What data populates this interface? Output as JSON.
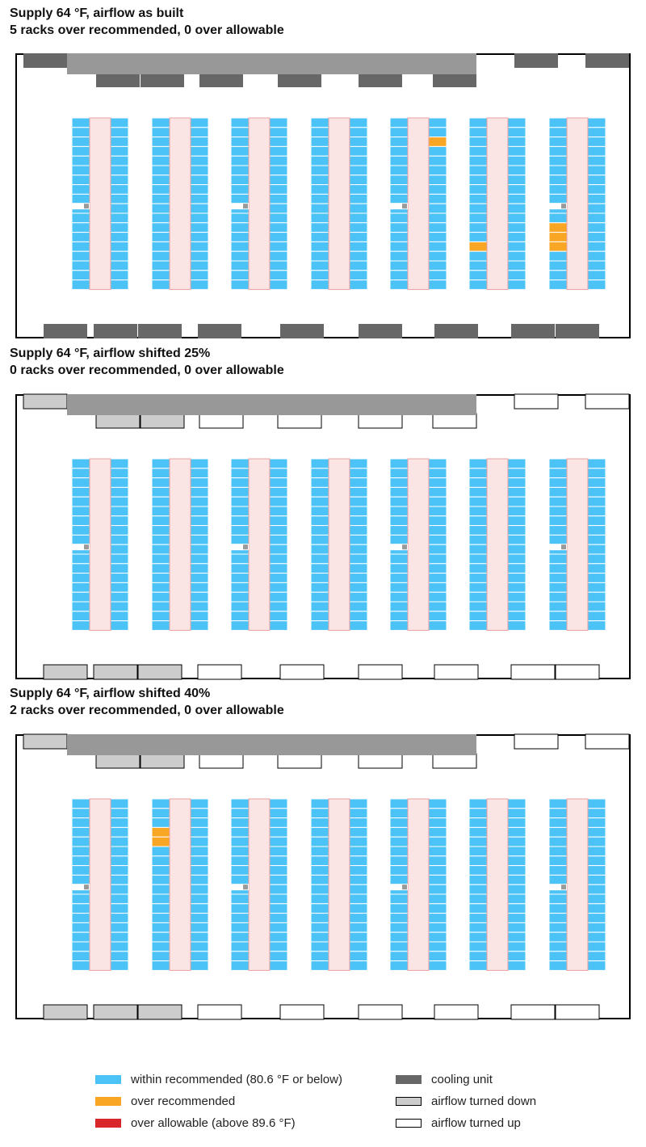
{
  "colors": {
    "within": "#4cc3f7",
    "over_recommended": "#f8a623",
    "over_allowable": "#d9262b",
    "cooling_unit": "#676767",
    "turned_down": "#cccccc",
    "turned_up": "#ffffff",
    "duct": "#989898",
    "hot_aisle": "#fbe4e4",
    "hot_aisle_stroke": "#e8a0a0",
    "pdu": "#9a9a9a"
  },
  "panels": [
    {
      "title_line1": "Supply 64 °F, airflow as built",
      "title_line2": "5 racks over recommended, 0 over allowable",
      "top_units": [
        "cooling_unit",
        "cooling_unit",
        "cooling_unit",
        "cooling_unit",
        "cooling_unit",
        "cooling_unit",
        "cooling_unit",
        "cooling_unit",
        "cooling_unit"
      ],
      "bottom_units": [
        "cooling_unit",
        "cooling_unit",
        "cooling_unit",
        "cooling_unit",
        "cooling_unit",
        "cooling_unit",
        "cooling_unit",
        "cooling_unit",
        "cooling_unit",
        "cooling_unit"
      ],
      "hot_racks": [
        {
          "row": 5,
          "side": "right",
          "rack": 3,
          "status": "over_recommended"
        },
        {
          "row": 6,
          "side": "left",
          "rack": 14,
          "status": "over_recommended"
        },
        {
          "row": 7,
          "side": "left",
          "rack": 12,
          "status": "over_recommended"
        },
        {
          "row": 7,
          "side": "left",
          "rack": 13,
          "status": "over_recommended"
        },
        {
          "row": 7,
          "side": "left",
          "rack": 14,
          "status": "over_recommended"
        }
      ]
    },
    {
      "title_line1": "Supply 64 °F, airflow shifted 25%",
      "title_line2": "0 racks over recommended, 0 over allowable",
      "top_units": [
        "turned_down",
        "turned_down",
        "turned_down",
        "turned_up",
        "turned_up",
        "turned_up",
        "turned_up",
        "turned_up",
        "turned_up"
      ],
      "bottom_units": [
        "turned_down",
        "turned_down",
        "turned_down",
        "turned_up",
        "turned_up",
        "turned_up",
        "turned_up",
        "turned_up",
        "turned_up",
        "turned_up"
      ],
      "hot_racks": []
    },
    {
      "title_line1": "Supply 64 °F, airflow shifted 40%",
      "title_line2": "2 racks over recommended, 0 over allowable",
      "top_units": [
        "turned_down",
        "turned_down",
        "turned_down",
        "turned_up",
        "turned_up",
        "turned_up",
        "turned_up",
        "turned_up",
        "turned_up"
      ],
      "bottom_units": [
        "turned_down",
        "turned_down",
        "turned_down",
        "turned_up",
        "turned_up",
        "turned_up",
        "turned_up",
        "turned_up",
        "turned_up",
        "turned_up"
      ],
      "hot_racks": [
        {
          "row": 2,
          "side": "left",
          "rack": 4,
          "status": "over_recommended"
        },
        {
          "row": 2,
          "side": "left",
          "rack": 5,
          "status": "over_recommended"
        }
      ]
    }
  ],
  "layout_info": {
    "rows_per_panel": 7,
    "racks_per_side": 18,
    "pdu_rows": [
      1,
      3,
      5,
      7
    ]
  },
  "legend": {
    "within": "within recommended (80.6 °F or below)",
    "over_recommended": "over recommended",
    "over_allowable": "over allowable (above 89.6 °F)",
    "cooling_unit": "cooling unit",
    "turned_down": "airflow turned down",
    "turned_up": "airflow turned up"
  }
}
